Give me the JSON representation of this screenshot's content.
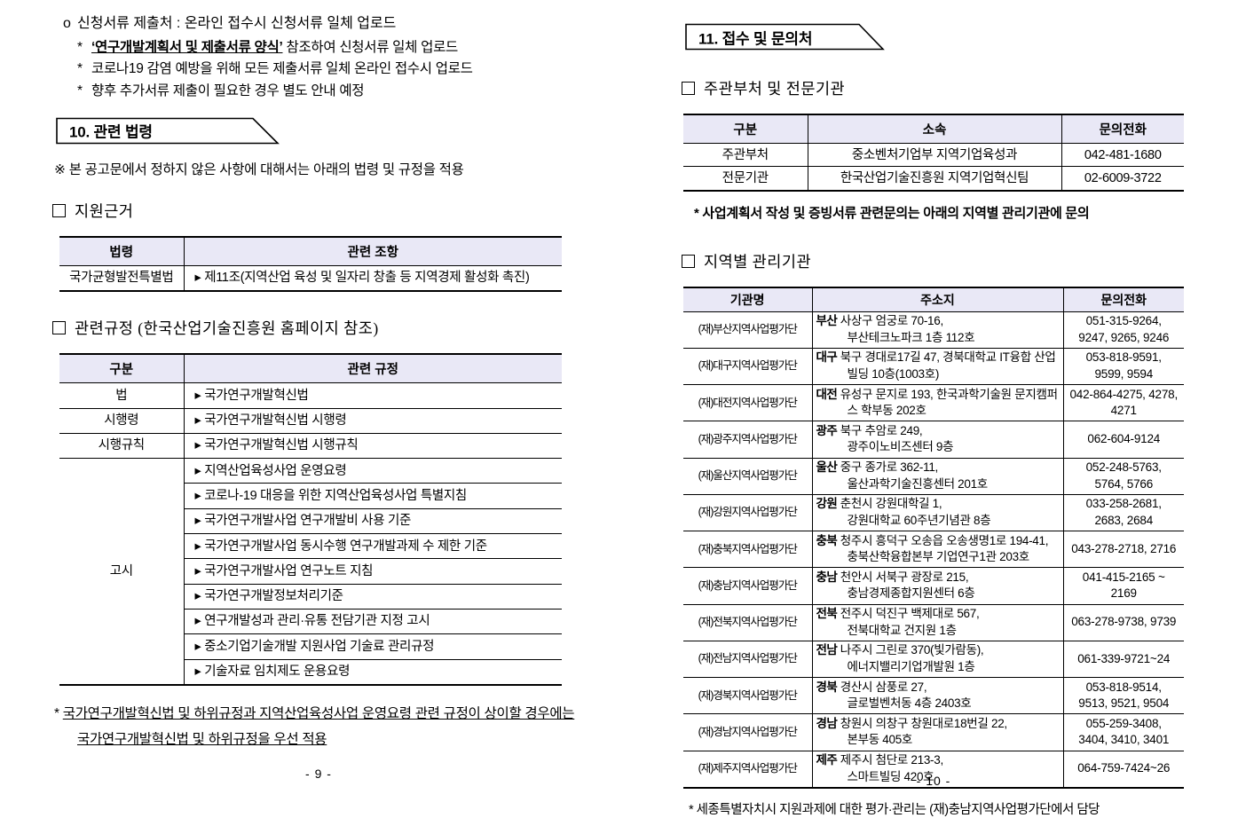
{
  "colors": {
    "table_header_bg": "#E9E8F6",
    "border": "#000000"
  },
  "left_page": {
    "intro": {
      "line1": {
        "marker": "o",
        "text": "신청서류 제출처 : 온라인 접수시 신청서류 일체 업로드"
      },
      "line2": {
        "marker": "*",
        "emphasis": "‘연구개발계획서 및 제출서류 양식’",
        "rest": " 참조하여 신청서류 일체 업로드"
      },
      "line3": {
        "marker": "*",
        "text": "코로나19 감염 예방을 위해 모든 제출서류 일체 온라인 접수시 업로드"
      },
      "line4": {
        "marker": "*",
        "text": "향후 추가서류 제출이 필요한 경우 별도 안내 예정"
      }
    },
    "section_title": "10. 관련 법령",
    "scope_note": "※ 본 공고문에서 정하지 않은 사항에 대해서는 아래의 법령 및 규정을 적용",
    "basis": {
      "heading": "지원근거",
      "table": {
        "headers": [
          "법령",
          "관련 조항"
        ],
        "rows": [
          [
            {
              "t": "국가균형발전특별법"
            },
            {
              "t": "▸ 제11조(지역산업 육성 및 일자리 창출 등 지역경제 활성화 촉진)",
              "al": "l"
            }
          ]
        ]
      }
    },
    "regs": {
      "heading": "관련규정 (한국산업기술진흥원 홈페이지 참조)",
      "table": {
        "headers": [
          "구분",
          "관련 규정"
        ],
        "rows": [
          [
            {
              "t": "법"
            },
            {
              "t": "▸ 국가연구개발혁신법",
              "al": "l"
            }
          ],
          [
            {
              "t": "시행령"
            },
            {
              "t": "▸ 국가연구개발혁신법 시행령",
              "al": "l"
            }
          ],
          [
            {
              "t": "시행규칙"
            },
            {
              "t": "▸ 국가연구개발혁신법 시행규칙",
              "al": "l"
            }
          ],
          [
            {
              "t": "고시",
              "rs": 9
            },
            {
              "t": "▸ 지역산업육성사업 운영요령",
              "al": "l"
            }
          ],
          [
            {
              "t": "▸ 코로나-19 대응을 위한 지역산업육성사업 특별지침",
              "al": "l"
            }
          ],
          [
            {
              "t": "▸ 국가연구개발사업 연구개발비 사용 기준",
              "al": "l"
            }
          ],
          [
            {
              "t": "▸ 국가연구개발사업 동시수행 연구개발과제 수 제한 기준",
              "al": "l"
            }
          ],
          [
            {
              "t": "▸ 국가연구개발사업 연구노트 지침",
              "al": "l"
            }
          ],
          [
            {
              "t": "▸ 국가연구개발정보처리기준",
              "al": "l"
            }
          ],
          [
            {
              "t": "▸ 연구개발성과 관리·유통 전담기관 지정 고시",
              "al": "l"
            }
          ],
          [
            {
              "t": "▸ 중소기업기술개발 지원사업 기술료 관리규정",
              "al": "l"
            }
          ],
          [
            {
              "t": "▸ 기술자료 임치제도 운용요령",
              "al": "l"
            }
          ]
        ]
      }
    },
    "footnote_marker": "* ",
    "footnote": "국가연구개발혁신법 및 하위규정과 지역산업육성사업 운영요령 관련 규정이 상이할 경우에는 국가연구개발혁신법 및 하위규정을 우선 적용",
    "page_number": "- 9 -"
  },
  "right_page": {
    "section_title": "11. 접수 및 문의처",
    "agencies": {
      "heading": "주관부처 및 전문기관",
      "table": {
        "headers": [
          "구분",
          "소속",
          "문의전화"
        ],
        "rows": [
          [
            {
              "t": "주관부처"
            },
            {
              "t": "중소벤처기업부 지역기업육성과"
            },
            {
              "t": "042-481-1680"
            }
          ],
          [
            {
              "t": "전문기관"
            },
            {
              "t": "한국산업기술진흥원 지역기업혁신팀"
            },
            {
              "t": "02-6009-3722"
            }
          ]
        ]
      },
      "note": "* 사업계획서 작성 및 증빙서류 관련문의는 아래의 지역별 관리기관에 문의"
    },
    "regional": {
      "heading": "지역별 관리기관",
      "table": {
        "headers": [
          "기관명",
          "주소지",
          "문의전화"
        ],
        "rows": [
          [
            {
              "t": "(재)부산지역사업평가단",
              "cls": "org"
            },
            {
              "pre": "부산",
              "t": "사상구 엄궁로 70-16,\n부산테크노파크 1층 112호",
              "al": "l"
            },
            {
              "t": "051-315-9264,\n9247, 9265, 9246",
              "cls": "phone"
            }
          ],
          [
            {
              "t": "(재)대구지역사업평가단",
              "cls": "org"
            },
            {
              "pre": "대구",
              "t": "북구 경대로17길 47, 경북대학교 IT융합 산업빌딩 10층(1003호)",
              "al": "l"
            },
            {
              "t": "053-818-9591,\n9599, 9594",
              "cls": "phone"
            }
          ],
          [
            {
              "t": "(재)대전지역사업평가단",
              "cls": "org"
            },
            {
              "pre": "대전",
              "t": "유성구 문지로 193, 한국과학기술원 문지캠퍼스 학부동 202호",
              "al": "l"
            },
            {
              "t": "042-864-4275, 4278,\n4271",
              "cls": "phone"
            }
          ],
          [
            {
              "t": "(재)광주지역사업평가단",
              "cls": "org"
            },
            {
              "pre": "광주",
              "t": "북구 추암로 249,\n광주이노비즈센터 9층",
              "al": "l"
            },
            {
              "t": "062-604-9124",
              "cls": "phone"
            }
          ],
          [
            {
              "t": "(재)울산지역사업평가단",
              "cls": "org"
            },
            {
              "pre": "울산",
              "t": "중구 종가로 362-11,\n울산과학기술진흥센터 201호",
              "al": "l"
            },
            {
              "t": "052-248-5763,\n5764, 5766",
              "cls": "phone"
            }
          ],
          [
            {
              "t": "(재)강원지역사업평가단",
              "cls": "org"
            },
            {
              "pre": "강원",
              "t": "춘천시 강원대학길 1,\n강원대학교 60주년기념관 8층",
              "al": "l"
            },
            {
              "t": "033-258-2681,\n2683, 2684",
              "cls": "phone"
            }
          ],
          [
            {
              "t": "(재)충북지역사업평가단",
              "cls": "org"
            },
            {
              "pre": "충북",
              "t": "청주시 흥덕구 오송읍 오송생명1로 194-41, 충북산학융합본부 기업연구1관 203호",
              "al": "l"
            },
            {
              "t": "043-278-2718, 2716",
              "cls": "phone"
            }
          ],
          [
            {
              "t": "(재)충남지역사업평가단",
              "cls": "org"
            },
            {
              "pre": "충남",
              "t": "천안시 서북구 광장로 215,\n충남경제종합지원센터 6층",
              "al": "l"
            },
            {
              "t": "041-415-2165 ~\n2169",
              "cls": "phone"
            }
          ],
          [
            {
              "t": "(재)전북지역사업평가단",
              "cls": "org"
            },
            {
              "pre": "전북",
              "t": "전주시 덕진구 백제대로 567,\n전북대학교 건지원 1층",
              "al": "l"
            },
            {
              "t": "063-278-9738, 9739",
              "cls": "phone"
            }
          ],
          [
            {
              "t": "(재)전남지역사업평가단",
              "cls": "org"
            },
            {
              "pre": "전남",
              "t": "나주시 그린로 370(빛가람동),\n에너지밸리기업개발원 1층",
              "al": "l"
            },
            {
              "t": "061-339-9721~24",
              "cls": "phone"
            }
          ],
          [
            {
              "t": "(재)경북지역사업평가단",
              "cls": "org"
            },
            {
              "pre": "경북",
              "t": "경산시 삼풍로 27,\n글로벌벤처동 4층 2403호",
              "al": "l"
            },
            {
              "t": "053-818-9514,\n9513, 9521, 9504",
              "cls": "phone"
            }
          ],
          [
            {
              "t": "(재)경남지역사업평가단",
              "cls": "org"
            },
            {
              "pre": "경남",
              "t": "창원시 의창구 창원대로18번길 22,\n본부동 405호",
              "al": "l"
            },
            {
              "t": "055-259-3408,\n3404, 3410, 3401",
              "cls": "phone"
            }
          ],
          [
            {
              "t": "(재)제주지역사업평가단",
              "cls": "org"
            },
            {
              "pre": "제주",
              "t": "제주시 첨단로 213-3,\n스마트빌딩 420호",
              "al": "l"
            },
            {
              "t": "064-759-7424~26",
              "cls": "phone"
            }
          ]
        ]
      },
      "note": "* 세종특별자치시 지원과제에 대한 평가·관리는 (재)충남지역사업평가단에서 담당"
    },
    "page_number": "- 10 -"
  }
}
